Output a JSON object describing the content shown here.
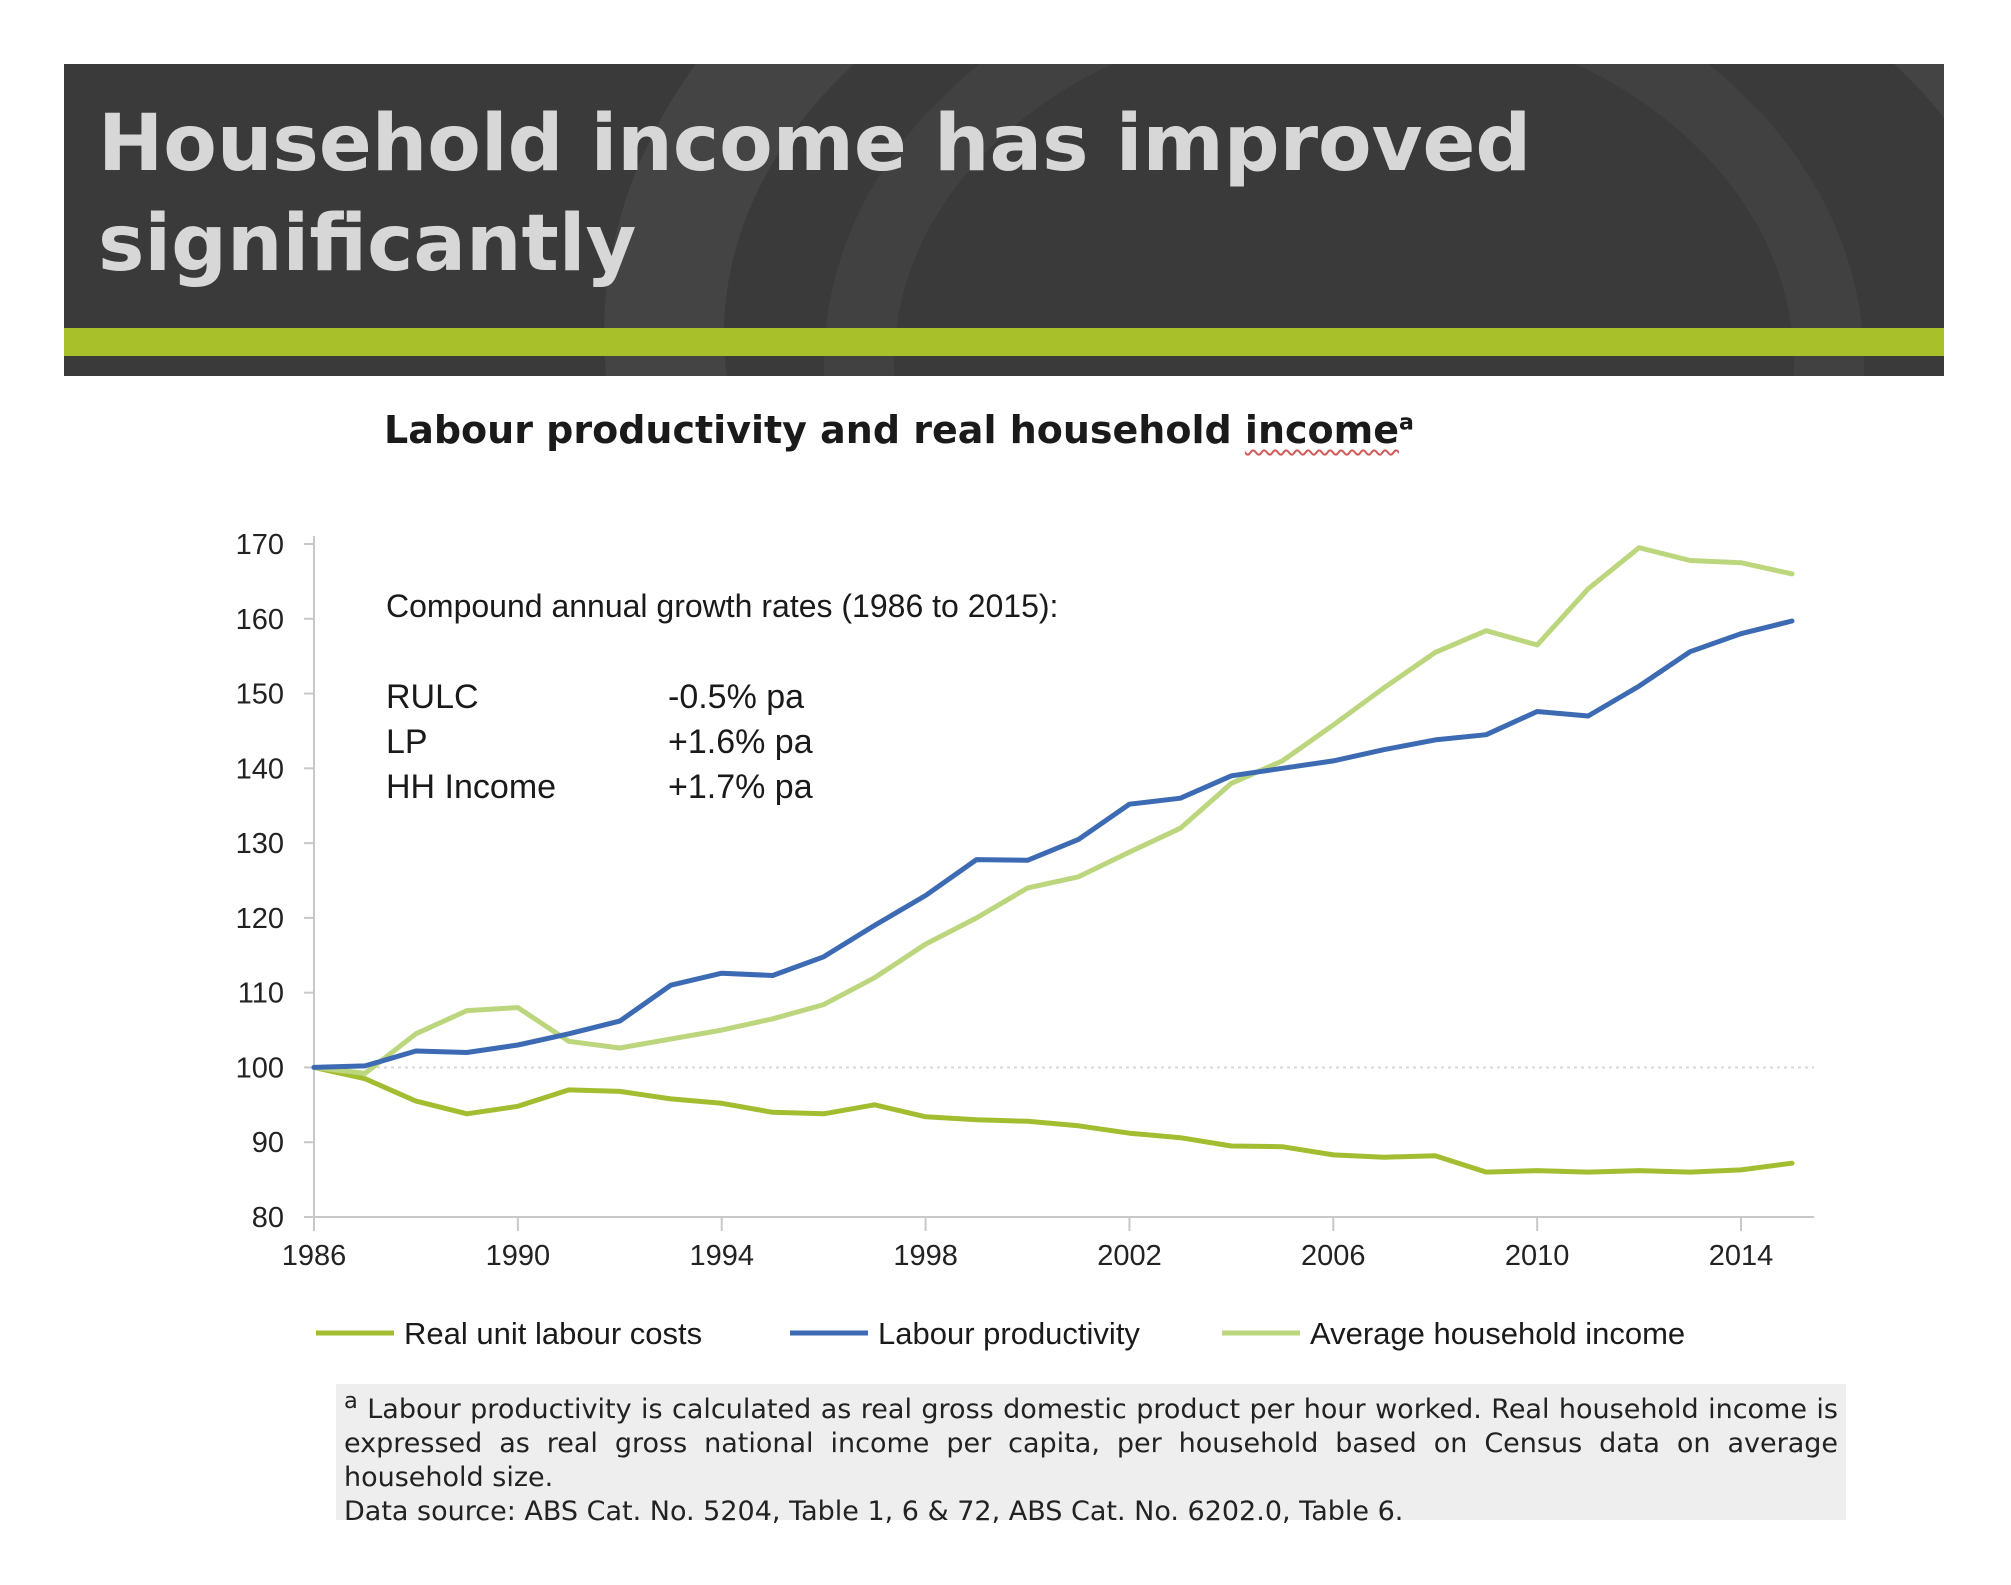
{
  "banner": {
    "title": "Household income has improved\nsignificantly"
  },
  "chart_title": {
    "text": "Labour productivity and real household ",
    "underlined_word": "income",
    "superscript": "a"
  },
  "annotation": {
    "heading": "Compound annual growth rates (1986 to 2015):",
    "rows": [
      {
        "label": "RULC",
        "value": "-0.5% pa"
      },
      {
        "label": "LP",
        "value": "+1.6% pa"
      },
      {
        "label": "HH Income",
        "value": "+1.7% pa"
      }
    ]
  },
  "footnote": {
    "sup": "a",
    "text": " Labour productivity is calculated as real gross domestic product per hour worked. Real household income is expressed as real gross national income per capita, per household based on Census data on average household size.",
    "source": "Data source: ABS Cat. No. 5204, Table 1, 6 & 72, ABS Cat. No. 6202.0, Table 6."
  },
  "colors": {
    "banner_bg": "#3a3a3a",
    "stripe": "#a8c02a",
    "rulc": "#a3bd31",
    "lp": "#3d6bb3",
    "hh": "#bcd67e"
  },
  "chart_data": {
    "type": "line",
    "xlim": [
      1986,
      2015
    ],
    "ylim": [
      80,
      170
    ],
    "yticks": [
      80,
      90,
      100,
      110,
      120,
      130,
      140,
      150,
      160,
      170
    ],
    "xtick_labels": [
      "1986",
      "1990",
      "1994",
      "1998",
      "2002",
      "2006",
      "2010",
      "2014"
    ],
    "x": [
      1986,
      1987,
      1988,
      1989,
      1990,
      1991,
      1992,
      1993,
      1994,
      1995,
      1996,
      1997,
      1998,
      1999,
      2000,
      2001,
      2002,
      2003,
      2004,
      2005,
      2006,
      2007,
      2008,
      2009,
      2010,
      2011,
      2012,
      2013,
      2014,
      2015
    ],
    "series": [
      {
        "name": "Real unit labour costs",
        "color": "#a3bd31",
        "values": [
          100,
          98.5,
          95.5,
          93.8,
          94.8,
          97,
          96.8,
          95.8,
          95.2,
          94,
          93.8,
          95,
          93.4,
          93,
          92.8,
          92.2,
          91.2,
          90.6,
          89.5,
          89.4,
          88.3,
          88,
          88.2,
          86,
          86.2,
          86,
          86.2,
          86,
          86.3,
          87.2
        ]
      },
      {
        "name": "Labour productivity",
        "color": "#3d6bb3",
        "values": [
          100,
          100.2,
          102.2,
          102,
          103,
          104.5,
          106.2,
          111,
          112.6,
          112.3,
          114.8,
          119,
          123,
          127.8,
          127.7,
          130.5,
          135.2,
          136,
          139,
          140,
          141,
          142.5,
          143.8,
          144.5,
          147.6,
          147,
          151,
          155.6,
          158,
          159.7
        ]
      },
      {
        "name": "Average household income",
        "color": "#bcd67e",
        "values": [
          100,
          99.2,
          104.5,
          107.6,
          108,
          103.5,
          102.6,
          103.8,
          105,
          106.5,
          108.4,
          112,
          116.5,
          120,
          124,
          125.5,
          128.8,
          132,
          138,
          141,
          145.8,
          150.8,
          155.5,
          158.4,
          156.5,
          164,
          169.5,
          167.8,
          167.5,
          166
        ]
      }
    ],
    "legend_position": "bottom",
    "grid": false,
    "reference_line": 100
  }
}
